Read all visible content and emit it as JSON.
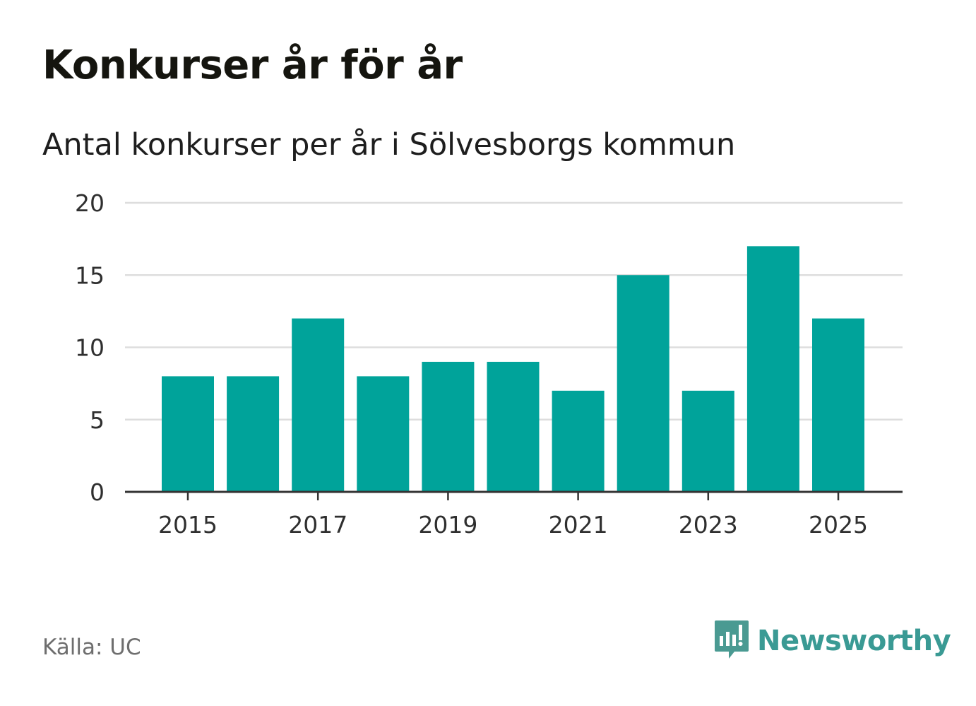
{
  "header": {
    "title": "Konkurser år för år",
    "subtitle": "Antal konkurser per år i Sölvesborgs kommun"
  },
  "footer": {
    "source": "Källa: UC",
    "brand": "Newsworthy"
  },
  "colors": {
    "bar": "#00a39a",
    "grid": "#dddddd",
    "axis": "#333333",
    "brand": "#3a9a94",
    "brand_icon": "#4a9a92"
  },
  "chart_data": {
    "type": "bar",
    "title": "Konkurser år för år",
    "subtitle": "Antal konkurser per år i Sölvesborgs kommun",
    "categories": [
      2015,
      2016,
      2017,
      2018,
      2019,
      2020,
      2021,
      2022,
      2023,
      2024,
      2025
    ],
    "values": [
      8,
      8,
      12,
      8,
      9,
      9,
      7,
      15,
      7,
      17,
      12
    ],
    "ylim": [
      0,
      20
    ],
    "yticks": [
      0,
      5,
      10,
      15,
      20
    ],
    "xticks": [
      "2015",
      "2017",
      "2019",
      "2021",
      "2023",
      "2025"
    ],
    "grid": true,
    "legend": "none"
  }
}
